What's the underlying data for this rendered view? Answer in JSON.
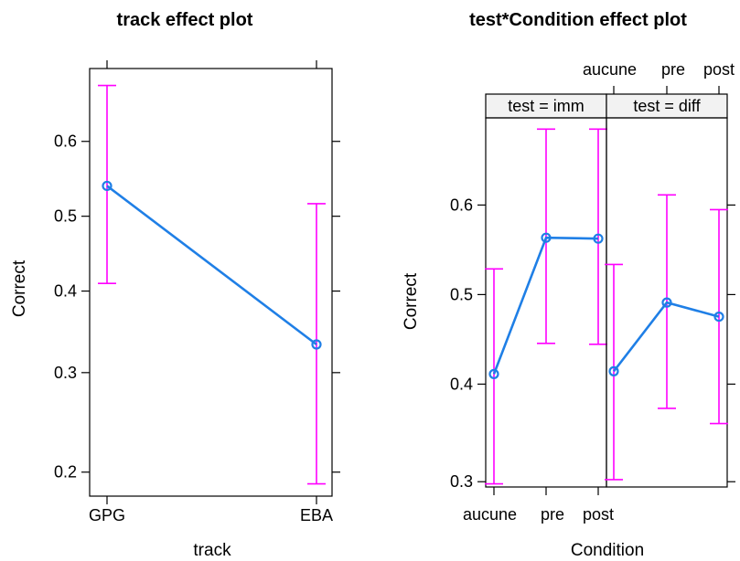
{
  "chart_data": [
    {
      "type": "line",
      "title": "track effect plot",
      "xlabel": "track",
      "ylabel": "Correct",
      "categories": [
        "GPG",
        "EBA"
      ],
      "y_ticks": [
        0.2,
        0.3,
        0.4,
        0.5,
        0.6
      ],
      "y_tick_labels": [
        "0.2",
        "0.3",
        "0.4",
        "0.5",
        "0.6"
      ],
      "ylim": [
        0.18,
        0.69
      ],
      "y_scale": "logit",
      "series": [
        {
          "values": [
            0.541,
            0.333
          ],
          "lower": [
            0.41,
            0.19
          ],
          "upper": [
            0.67,
            0.517
          ]
        }
      ],
      "colors": {
        "line": "#1f7fe6",
        "error": "#ff00ff",
        "frame": "#000000"
      }
    },
    {
      "type": "line",
      "title": "test*Condition effect plot",
      "xlabel": "Condition",
      "ylabel": "Correct",
      "categories": [
        "aucune",
        "pre",
        "post"
      ],
      "y_ticks": [
        0.3,
        0.4,
        0.5,
        0.6
      ],
      "y_tick_labels": [
        "0.3",
        "0.4",
        "0.5",
        "0.6"
      ],
      "ylim": [
        0.295,
        0.69
      ],
      "y_scale": "logit",
      "panels": [
        {
          "strip": "test = imm",
          "values": [
            0.411,
            0.564,
            0.563
          ],
          "lower": [
            0.298,
            0.445,
            0.444
          ],
          "upper": [
            0.529,
            0.679,
            0.679
          ]
        },
        {
          "strip": "test = diff",
          "values": [
            0.414,
            0.491,
            0.475
          ],
          "lower": [
            0.302,
            0.374,
            0.358
          ],
          "upper": [
            0.534,
            0.611,
            0.595
          ]
        }
      ],
      "colors": {
        "line": "#1f7fe6",
        "error": "#ff00ff",
        "frame": "#000000",
        "strip": "#f2f2f2"
      }
    }
  ]
}
